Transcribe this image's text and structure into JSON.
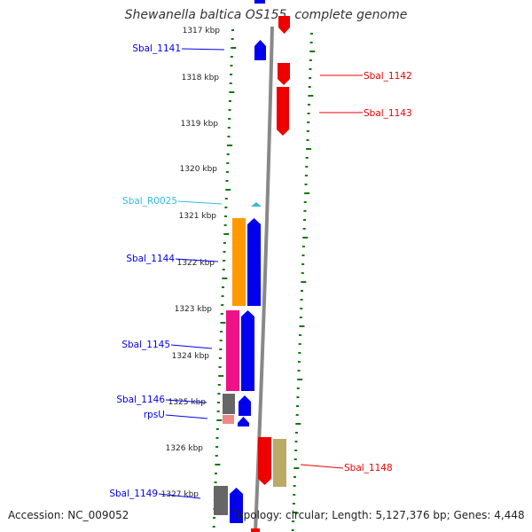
{
  "title": "Shewanella baltica OS155, complete genome",
  "footer": {
    "accession": "Accession: NC_009052",
    "info": "Topology: circular; Length: 5,127,376 bp; Genes: 4,448"
  },
  "colors": {
    "forward": "#0000ee",
    "reverse": "#ee0000",
    "rna": "#33bbdd",
    "orange": "#ff9900",
    "magenta": "#ee1188",
    "gray": "#666666",
    "pink": "#ee8888",
    "khaki": "#bbaa66",
    "tick": "#117711",
    "axis": "#888888"
  },
  "scale": [
    {
      "label": "1317 kbp"
    },
    {
      "label": "1318 kbp"
    },
    {
      "label": "1319 kbp"
    },
    {
      "label": "1320 kbp"
    },
    {
      "label": "1321 kbp"
    },
    {
      "label": "1322 kbp"
    },
    {
      "label": "1323 kbp"
    },
    {
      "label": "1324 kbp"
    },
    {
      "label": "1325 kbp"
    },
    {
      "label": "1326 kbp"
    },
    {
      "label": "1327 kbp"
    }
  ],
  "gene_labels": [
    {
      "text": "Sbal_1141",
      "strand": "forward"
    },
    {
      "text": "Sbal_1142",
      "strand": "reverse"
    },
    {
      "text": "Sbal_1143",
      "strand": "reverse"
    },
    {
      "text": "Sbal_R0025",
      "strand": "rna"
    },
    {
      "text": "Sbal_1144",
      "strand": "forward"
    },
    {
      "text": "Sbal_1145",
      "strand": "forward"
    },
    {
      "text": "Sbal_1146",
      "strand": "forward"
    },
    {
      "text": "rpsU",
      "strand": "forward"
    },
    {
      "text": "Sbal_1148",
      "strand": "reverse"
    },
    {
      "text": "Sbal_1149",
      "strand": "forward"
    }
  ]
}
